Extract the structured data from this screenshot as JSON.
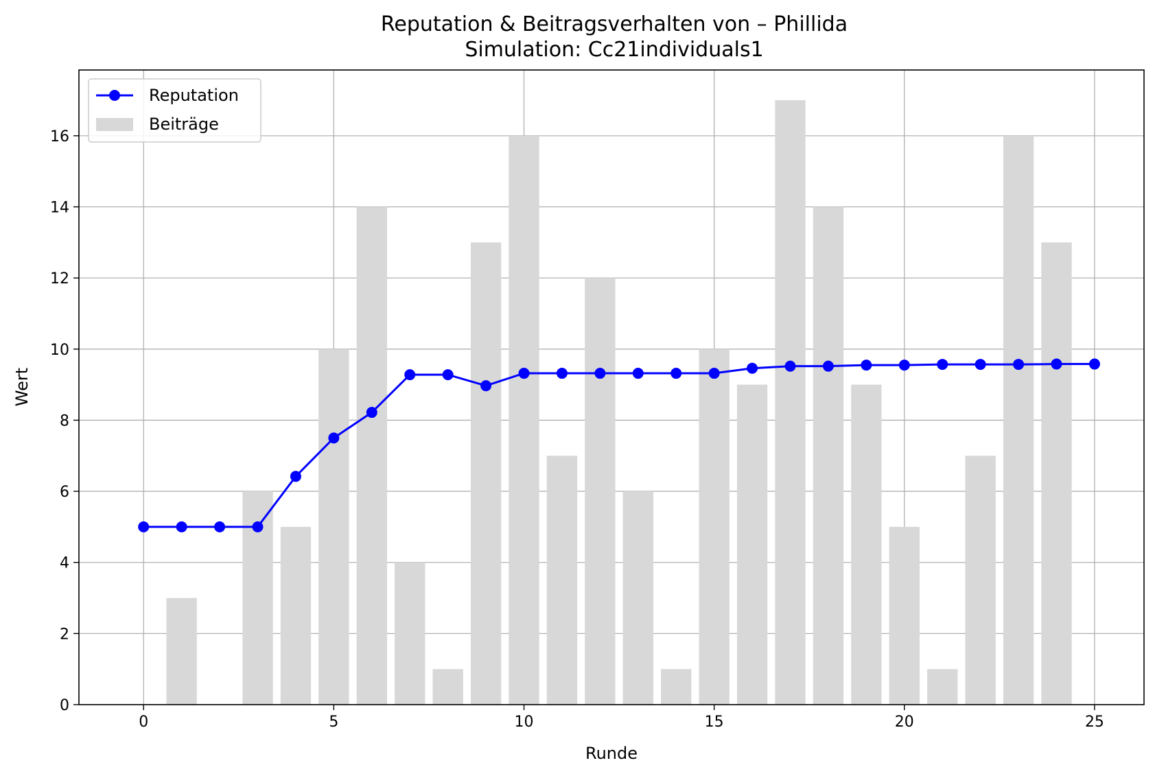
{
  "chart_data": {
    "type": "bar+line",
    "title": "Reputation & Beitragsverhalten von – Phillida",
    "subtitle": "Simulation: Cc21individuals1",
    "xlabel": "Runde",
    "ylabel": "Wert",
    "xlim": [
      -1.7,
      26.3
    ],
    "ylim": [
      0,
      17.85
    ],
    "xticks": [
      0,
      5,
      10,
      15,
      20,
      25
    ],
    "yticks": [
      0,
      2,
      4,
      6,
      8,
      10,
      12,
      14,
      16
    ],
    "grid": true,
    "legend_position": "upper-left",
    "x": [
      0,
      1,
      2,
      3,
      4,
      5,
      6,
      7,
      8,
      9,
      10,
      11,
      12,
      13,
      14,
      15,
      16,
      17,
      18,
      19,
      20,
      21,
      22,
      23,
      24,
      25
    ],
    "series": [
      {
        "name": "Reputation",
        "kind": "line",
        "color": "#0000ff",
        "values": [
          5.0,
          5.0,
          5.0,
          5.0,
          6.42,
          7.5,
          8.22,
          9.28,
          9.28,
          8.97,
          9.32,
          9.32,
          9.32,
          9.32,
          9.32,
          9.32,
          9.46,
          9.52,
          9.52,
          9.55,
          9.55,
          9.57,
          9.57,
          9.57,
          9.58,
          9.58
        ]
      },
      {
        "name": "Beiträge",
        "kind": "bar",
        "color": "#d8d8d8",
        "values": [
          0,
          3,
          0,
          6,
          5,
          10,
          14,
          4,
          1,
          13,
          16,
          7,
          12,
          6,
          1,
          10,
          9,
          17,
          14,
          9,
          5,
          1,
          7,
          16,
          13,
          0
        ]
      }
    ]
  }
}
